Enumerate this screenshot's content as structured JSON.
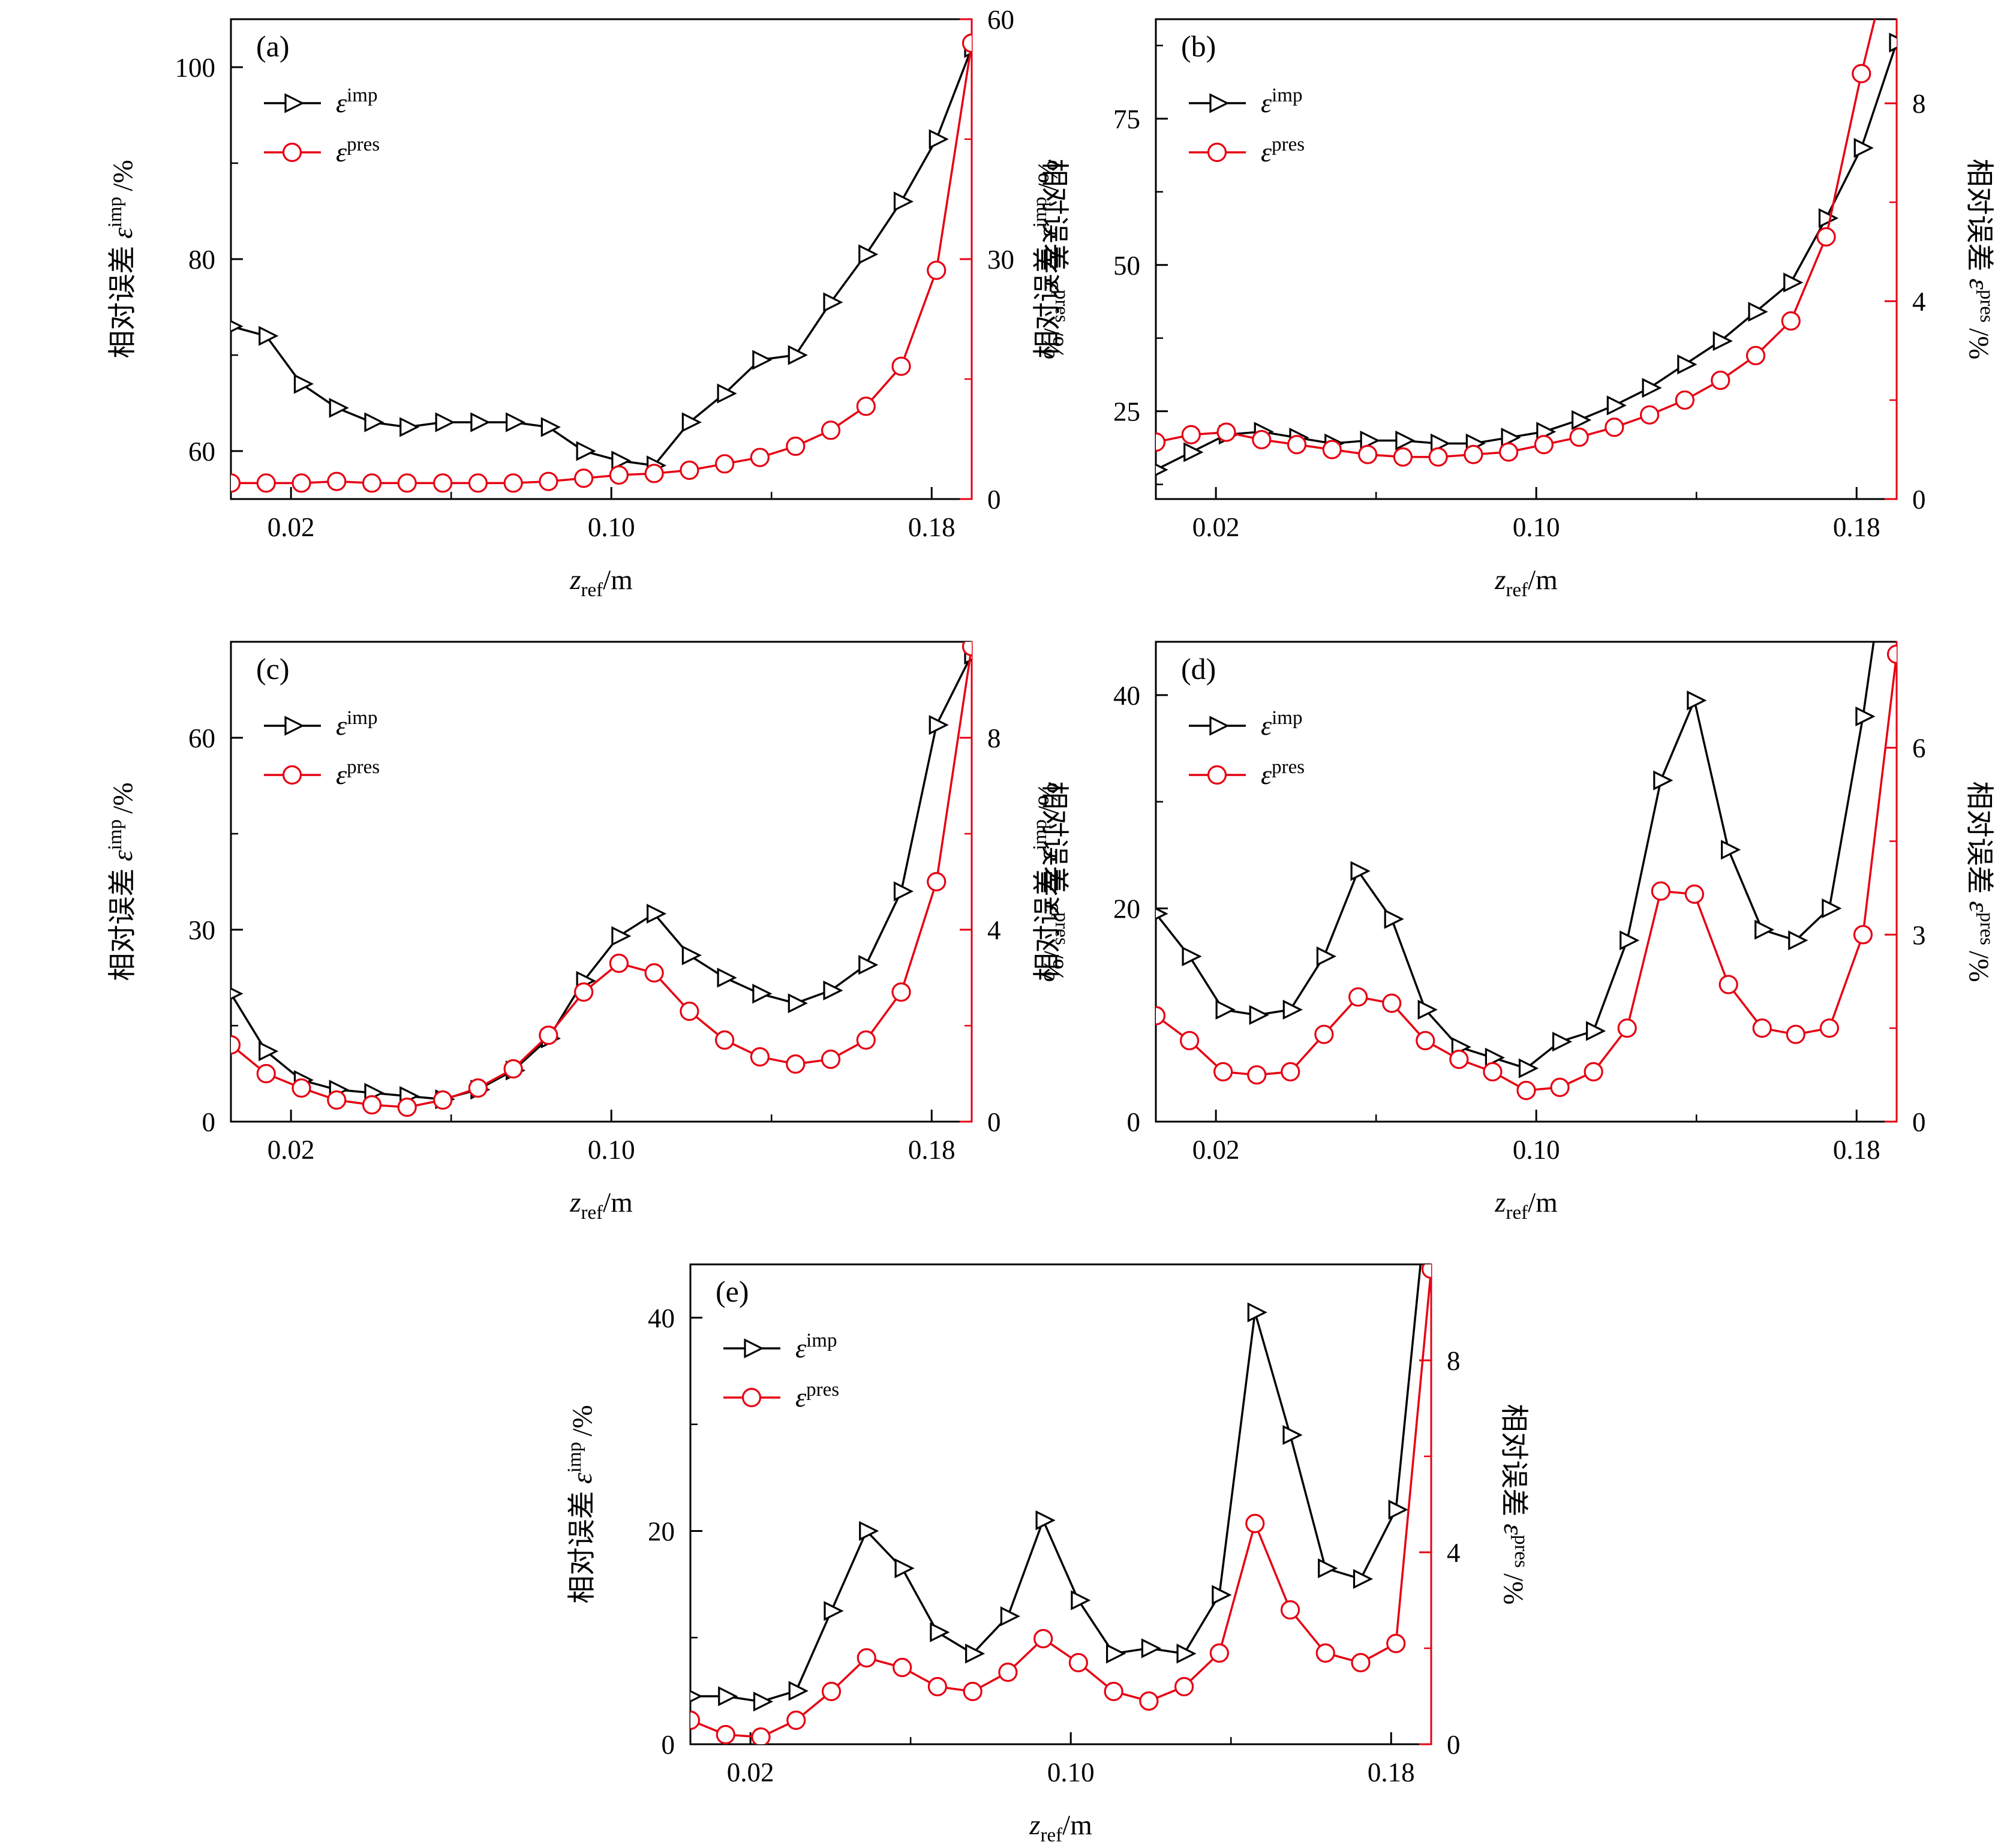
{
  "figure": {
    "colors": {
      "imp": "#000000",
      "pres": "#e60012",
      "background": "#ffffff"
    },
    "xlabel": {
      "var": "z",
      "sub": "ref",
      "unit": "/m"
    },
    "left_label": {
      "cjk": "相对误差",
      "sym": "ε",
      "sup": "imp",
      "unit": "/%"
    },
    "right_label": {
      "cjk": "相对误差",
      "sym": "ε",
      "sup": "pres",
      "unit": "/%"
    },
    "legend": [
      {
        "series": "imp",
        "sym": "ε",
        "sup": "imp"
      },
      {
        "series": "pres",
        "sym": "ε",
        "sup": "pres"
      }
    ]
  },
  "chart_data": [
    {
      "id": "a",
      "type": "line",
      "panel": "(a)",
      "x_range": [
        0.005,
        0.19
      ],
      "x_ticks": [
        {
          "v": 0.02,
          "label": "0.02"
        },
        {
          "v": 0.1,
          "label": "0.10"
        },
        {
          "v": 0.18,
          "label": "0.18"
        }
      ],
      "x_minor": [
        0.06,
        0.14
      ],
      "left": {
        "range": [
          55,
          105
        ],
        "ticks": [
          60,
          80,
          100
        ],
        "minor": [
          70,
          90
        ]
      },
      "right": {
        "range": [
          0,
          60
        ],
        "ticks": [
          0,
          30,
          60
        ],
        "minor": [
          15,
          45
        ]
      },
      "x": [
        0.005,
        0.0138,
        0.0226,
        0.0314,
        0.0402,
        0.049,
        0.0579,
        0.0667,
        0.0755,
        0.0843,
        0.0931,
        0.1019,
        0.1107,
        0.1195,
        0.1283,
        0.1371,
        0.146,
        0.1548,
        0.1636,
        0.1724,
        0.1812,
        0.19
      ],
      "imp": [
        73,
        72,
        67,
        64.5,
        63,
        62.5,
        63,
        63,
        63,
        62.5,
        60,
        59,
        58.5,
        63,
        66,
        69.5,
        70,
        75.5,
        80.5,
        86,
        92.5,
        102
      ],
      "pres": [
        2,
        2,
        2,
        2.2,
        2,
        2,
        2,
        2,
        2,
        2.2,
        2.6,
        3,
        3.2,
        3.6,
        4.4,
        5.2,
        6.6,
        8.6,
        11.6,
        16.6,
        28.6,
        57
      ]
    },
    {
      "id": "b",
      "type": "line",
      "panel": "(b)",
      "x_range": [
        0.005,
        0.19
      ],
      "x_ticks": [
        {
          "v": 0.02,
          "label": "0.02"
        },
        {
          "v": 0.1,
          "label": "0.10"
        },
        {
          "v": 0.18,
          "label": "0.18"
        }
      ],
      "x_minor": [
        0.06,
        0.14
      ],
      "left": {
        "range": [
          10,
          92
        ],
        "ticks": [
          25,
          50,
          75
        ],
        "minor": [
          12.5,
          37.5,
          62.5,
          87.5
        ]
      },
      "right": {
        "range": [
          0,
          9.7
        ],
        "ticks": [
          0,
          4,
          8
        ],
        "minor": [
          2,
          6
        ]
      },
      "x": [
        0.005,
        0.0138,
        0.0226,
        0.0314,
        0.0402,
        0.049,
        0.0579,
        0.0667,
        0.0755,
        0.0843,
        0.0931,
        0.1019,
        0.1107,
        0.1195,
        0.1283,
        0.1371,
        0.146,
        0.1548,
        0.1636,
        0.1724,
        0.1812,
        0.19
      ],
      "imp": [
        15,
        18,
        21,
        21.5,
        20.5,
        19.5,
        20,
        20,
        19.5,
        19.5,
        20.5,
        21.5,
        23.5,
        26,
        29,
        33,
        37,
        42,
        47,
        58,
        70,
        88
      ],
      "pres": [
        1.15,
        1.3,
        1.35,
        1.2,
        1.1,
        1.0,
        0.9,
        0.85,
        0.85,
        0.9,
        0.95,
        1.1,
        1.25,
        1.45,
        1.7,
        2.0,
        2.4,
        2.9,
        3.6,
        5.3,
        8.6,
        11.5
      ]
    },
    {
      "id": "c",
      "type": "line",
      "panel": "(c)",
      "x_range": [
        0.005,
        0.19
      ],
      "x_ticks": [
        {
          "v": 0.02,
          "label": "0.02"
        },
        {
          "v": 0.1,
          "label": "0.10"
        },
        {
          "v": 0.18,
          "label": "0.18"
        }
      ],
      "x_minor": [
        0.06,
        0.14
      ],
      "left": {
        "range": [
          0,
          75
        ],
        "ticks": [
          0,
          30,
          60
        ],
        "minor": [
          15,
          45
        ]
      },
      "right": {
        "range": [
          0,
          10
        ],
        "ticks": [
          0,
          4,
          8
        ],
        "minor": [
          2,
          6
        ]
      },
      "x": [
        0.005,
        0.0138,
        0.0226,
        0.0314,
        0.0402,
        0.049,
        0.0579,
        0.0667,
        0.0755,
        0.0843,
        0.0931,
        0.1019,
        0.1107,
        0.1195,
        0.1283,
        0.1371,
        0.146,
        0.1548,
        0.1636,
        0.1724,
        0.1812,
        0.19
      ],
      "imp": [
        20,
        11,
        6.5,
        5,
        4.5,
        4,
        3.5,
        5,
        8,
        13,
        22,
        29,
        32.5,
        26,
        22.5,
        20,
        18.5,
        20.5,
        24.5,
        36,
        62,
        73
      ],
      "pres": [
        1.6,
        1.0,
        0.7,
        0.45,
        0.35,
        0.3,
        0.45,
        0.7,
        1.1,
        1.8,
        2.7,
        3.3,
        3.1,
        2.3,
        1.7,
        1.35,
        1.2,
        1.3,
        1.7,
        2.7,
        5.0,
        9.9
      ]
    },
    {
      "id": "d",
      "type": "line",
      "panel": "(d)",
      "x_range": [
        0.005,
        0.19
      ],
      "x_ticks": [
        {
          "v": 0.02,
          "label": "0.02"
        },
        {
          "v": 0.1,
          "label": "0.10"
        },
        {
          "v": 0.18,
          "label": "0.18"
        }
      ],
      "x_minor": [
        0.06,
        0.14
      ],
      "left": {
        "range": [
          0,
          45
        ],
        "ticks": [
          0,
          20,
          40
        ],
        "minor": [
          10,
          30
        ]
      },
      "right": {
        "range": [
          0,
          7.7
        ],
        "ticks": [
          0,
          3,
          6
        ],
        "minor": [
          1.5,
          4.5
        ]
      },
      "x": [
        0.005,
        0.0134,
        0.0218,
        0.0302,
        0.0386,
        0.047,
        0.0555,
        0.0639,
        0.0723,
        0.0807,
        0.0891,
        0.0975,
        0.1059,
        0.1143,
        0.1227,
        0.1311,
        0.1395,
        0.148,
        0.1564,
        0.1648,
        0.1732,
        0.1816,
        0.19
      ],
      "imp": [
        19.5,
        15.5,
        10.5,
        10,
        10.5,
        15.5,
        23.5,
        19,
        10.5,
        7,
        6,
        5,
        7.5,
        8.5,
        17,
        32,
        39.5,
        25.5,
        18,
        17,
        20,
        38,
        60
      ],
      "pres": [
        1.7,
        1.3,
        0.8,
        0.75,
        0.8,
        1.4,
        2.0,
        1.9,
        1.3,
        1.0,
        0.8,
        0.5,
        0.55,
        0.8,
        1.5,
        3.7,
        3.65,
        2.2,
        1.5,
        1.4,
        1.5,
        3.0,
        7.5
      ]
    },
    {
      "id": "e",
      "type": "line",
      "panel": "(e)",
      "x_range": [
        0.005,
        0.19
      ],
      "x_ticks": [
        {
          "v": 0.02,
          "label": "0.02"
        },
        {
          "v": 0.1,
          "label": "0.10"
        },
        {
          "v": 0.18,
          "label": "0.18"
        }
      ],
      "x_minor": [
        0.06,
        0.14
      ],
      "left": {
        "range": [
          0,
          45
        ],
        "ticks": [
          0,
          20,
          40
        ],
        "minor": [
          10,
          30
        ]
      },
      "right": {
        "range": [
          0,
          10
        ],
        "ticks": [
          0,
          4,
          8
        ],
        "minor": [
          2,
          6
        ]
      },
      "x": [
        0.005,
        0.0138,
        0.0226,
        0.0314,
        0.0402,
        0.049,
        0.0579,
        0.0667,
        0.0755,
        0.0843,
        0.0931,
        0.1019,
        0.1107,
        0.1195,
        0.1283,
        0.1371,
        0.146,
        0.1548,
        0.1636,
        0.1724,
        0.1812,
        0.19
      ],
      "imp": [
        4.5,
        4.5,
        4,
        5,
        12.5,
        20,
        16.5,
        10.5,
        8.5,
        12,
        21,
        13.5,
        8.5,
        9,
        8.5,
        14,
        40.5,
        29,
        16.5,
        15.5,
        22,
        55
      ],
      "pres": [
        0.5,
        0.2,
        0.15,
        0.5,
        1.1,
        1.8,
        1.6,
        1.2,
        1.1,
        1.5,
        2.2,
        1.7,
        1.1,
        0.9,
        1.2,
        1.9,
        4.6,
        2.8,
        1.9,
        1.7,
        2.1,
        9.9
      ]
    }
  ]
}
